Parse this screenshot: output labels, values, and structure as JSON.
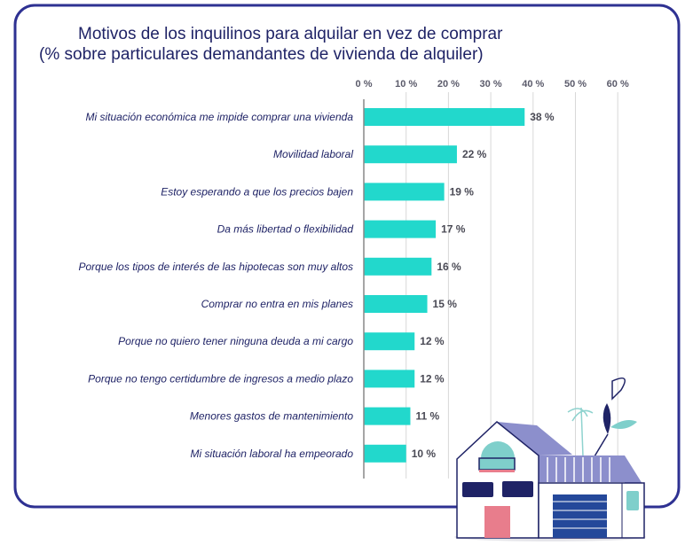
{
  "chart_data": {
    "type": "bar",
    "orientation": "horizontal",
    "title": "Motivos de los inquilinos para alquilar en vez de comprar",
    "subtitle": "(% sobre particulares demandantes de vivienda de alquiler)",
    "xlabel": "",
    "ylabel": "",
    "xlim": [
      0,
      60
    ],
    "ticks": [
      "0 %",
      "10 %",
      "20 %",
      "30 %",
      "40 %",
      "50 %",
      "60 %"
    ],
    "tick_values": [
      0,
      10,
      20,
      30,
      40,
      50,
      60
    ],
    "grid": true,
    "categories": [
      "Mi situación económica me impide comprar una vivienda",
      "Movilidad laboral",
      "Estoy esperando a que los precios bajen",
      "Da más libertad o flexibilidad",
      "Porque los tipos de interés de las hipotecas son muy altos",
      "Comprar no entra en mis planes",
      "Porque no quiero tener ninguna deuda a mi cargo",
      "Porque no tengo certidumbre de ingresos a medio plazo",
      "Menores gastos de mantenimiento",
      "Mi situación laboral ha empeorado"
    ],
    "values": [
      38,
      22,
      19,
      17,
      16,
      15,
      12,
      12,
      11,
      10
    ],
    "value_labels": [
      "38 %",
      "22 %",
      "19 %",
      "17 %",
      "16 %",
      "15 %",
      "12 %",
      "12 %",
      "11 %",
      "10 %"
    ],
    "colors": {
      "bar": "#22d8cc",
      "frame": "#2e3192",
      "title": "#1f2366",
      "grid": "#d8d8d8"
    }
  }
}
